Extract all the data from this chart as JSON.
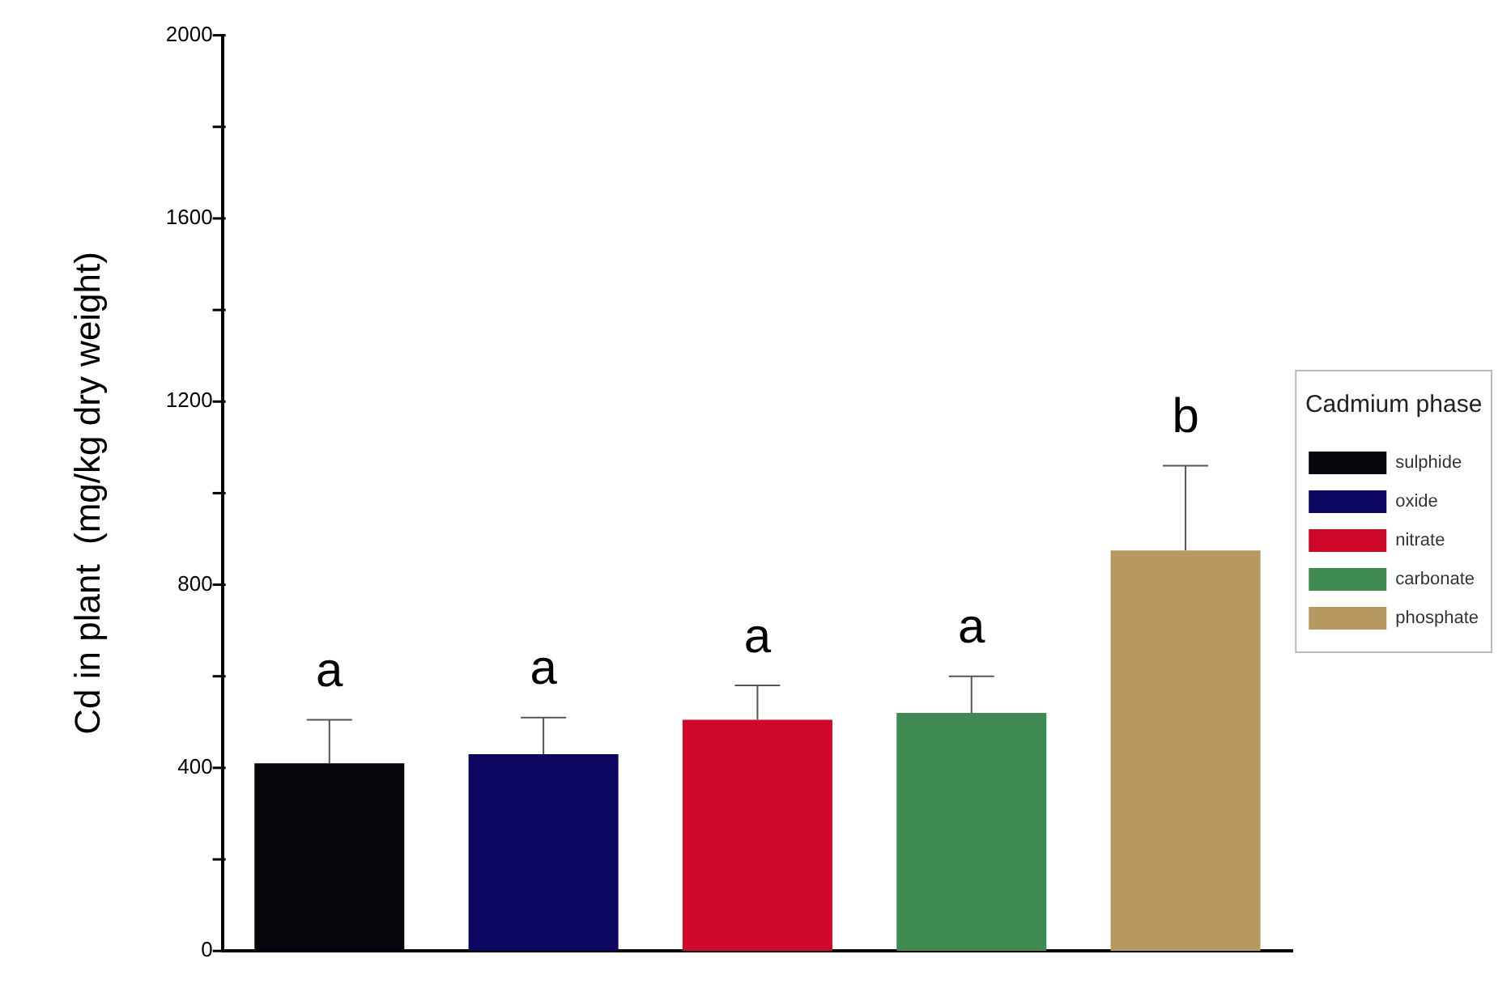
{
  "chart_data": {
    "type": "bar",
    "ylabel": "Cd in plant  (mg/kg dry weight)",
    "legend_title": "Cadmium phase",
    "legend": "right",
    "categories": [
      null,
      null,
      null,
      null,
      null
    ],
    "series": [
      {
        "name": "sulphide",
        "color": "#05060c",
        "values": [
          410,
          null,
          null,
          null,
          null
        ],
        "errors": [
          [
            410,
            505
          ],
          null,
          null,
          null,
          null
        ]
      },
      {
        "name": "oxide",
        "color": "#0d0660",
        "values": [
          null,
          430,
          null,
          null,
          null
        ],
        "errors": [
          null,
          [
            430,
            510
          ],
          null,
          null,
          null
        ]
      },
      {
        "name": "nitrate",
        "color": "#d0092b",
        "values": [
          null,
          null,
          505,
          null,
          null
        ],
        "errors": [
          null,
          null,
          [
            505,
            580
          ],
          null,
          null
        ]
      },
      {
        "name": "carbonate",
        "color": "#3f8a52",
        "values": [
          null,
          null,
          null,
          520,
          null
        ],
        "errors": [
          null,
          null,
          null,
          [
            520,
            600
          ],
          null
        ]
      },
      {
        "name": "phosphate",
        "color": "#b79860",
        "values": [
          null,
          null,
          null,
          null,
          875
        ],
        "errors": [
          null,
          null,
          null,
          null,
          [
            875,
            1060
          ]
        ]
      }
    ],
    "ylim": [
      0,
      2000
    ],
    "yticks": [
      0,
      {
        "value": 200,
        "label": null
      },
      400,
      {
        "value": 600,
        "label": null
      },
      800,
      {
        "value": 1000,
        "label": null
      },
      1200,
      {
        "value": 1400,
        "label": null
      },
      1600,
      {
        "value": 1800,
        "label": null
      },
      2000
    ],
    "annotations": [
      "a",
      "a",
      "a",
      "a",
      "b"
    ],
    "grid": false
  }
}
